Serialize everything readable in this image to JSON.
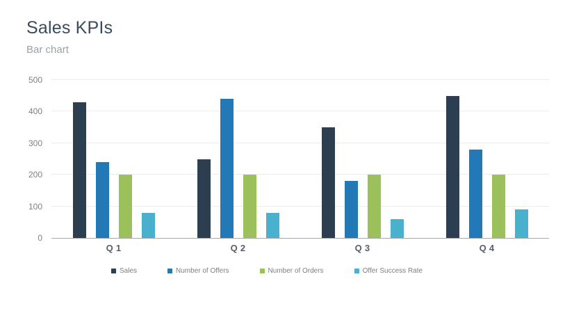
{
  "chart_data": {
    "type": "bar",
    "title": "Sales KPIs",
    "subtitle": "Bar chart",
    "categories": [
      "Q 1",
      "Q 2",
      "Q 3",
      "Q 4"
    ],
    "series": [
      {
        "name": "Sales",
        "color": "#2d3e50",
        "values": [
          430,
          250,
          350,
          450
        ]
      },
      {
        "name": "Number of Offers",
        "color": "#2379b5",
        "values": [
          240,
          440,
          180,
          280
        ]
      },
      {
        "name": "Number of Orders",
        "color": "#9bc05c",
        "values": [
          200,
          200,
          200,
          200
        ]
      },
      {
        "name": "Offer Success Rate",
        "color": "#49b1ce",
        "values": [
          80,
          80,
          60,
          90
        ]
      }
    ],
    "xlabel": "",
    "ylabel": "",
    "ylim": [
      0,
      500
    ],
    "yticks": [
      0,
      100,
      200,
      300,
      400,
      500
    ],
    "grid": true,
    "legend_position": "bottom"
  },
  "style": {
    "title_color": "#3a4b5f",
    "subtitle_color": "#9ba1a6",
    "grid_color": "#ececec",
    "axis_color": "#a9a9a9",
    "tick_color": "#7f7f7f",
    "xlabel_color": "#565e66",
    "legend_text_color": "#7f7f7f"
  }
}
